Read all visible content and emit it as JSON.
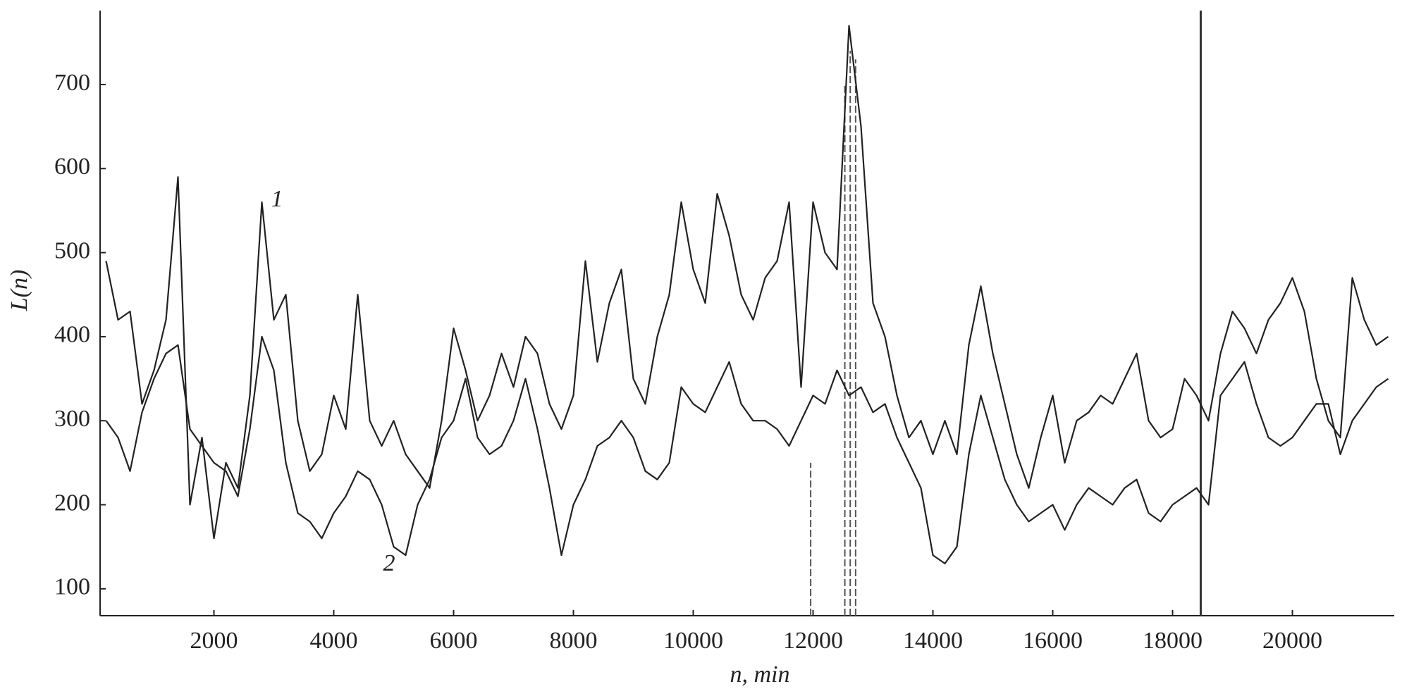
{
  "chart_data": {
    "type": "line",
    "xlabel": "n, min",
    "ylabel": "L(n)",
    "annotations": [
      "1",
      "2"
    ],
    "x": [
      200,
      400,
      600,
      800,
      1000,
      1200,
      1400,
      1600,
      1800,
      2000,
      2200,
      2400,
      2600,
      2800,
      3000,
      3200,
      3400,
      3600,
      3800,
      4000,
      4200,
      4400,
      4600,
      4800,
      5000,
      5200,
      5400,
      5600,
      5800,
      6000,
      6200,
      6400,
      6600,
      6800,
      7000,
      7200,
      7400,
      7600,
      7800,
      8000,
      8200,
      8400,
      8600,
      8800,
      9000,
      9200,
      9400,
      9600,
      9800,
      10000,
      10200,
      10400,
      10600,
      10800,
      11000,
      11200,
      11400,
      11600,
      11800,
      12000,
      12200,
      12400,
      12600,
      12800,
      13000,
      13200,
      13400,
      13600,
      13800,
      14000,
      14200,
      14400,
      14600,
      14800,
      15000,
      15200,
      15400,
      15600,
      15800,
      16000,
      16200,
      16400,
      16600,
      16800,
      17000,
      17200,
      17400,
      17600,
      17800,
      18000,
      18200,
      18400,
      18600,
      18800,
      19000,
      19200,
      19400,
      19600,
      19800,
      20000,
      20200,
      20400,
      20600,
      20800,
      21000,
      21200,
      21400,
      21600
    ],
    "series": [
      {
        "color": "#222222",
        "values": [
          490,
          420,
          430,
          320,
          360,
          420,
          590,
          200,
          280,
          160,
          250,
          220,
          330,
          560,
          420,
          450,
          300,
          240,
          260,
          330,
          290,
          450,
          300,
          270,
          300,
          260,
          240,
          220,
          300,
          410,
          360,
          300,
          330,
          380,
          340,
          400,
          380,
          320,
          290,
          330,
          490,
          370,
          440,
          480,
          350,
          320,
          400,
          450,
          560,
          480,
          440,
          570,
          520,
          450,
          420,
          470,
          490,
          560,
          340,
          560,
          500,
          480,
          770,
          650,
          440,
          400,
          330,
          280,
          300,
          260,
          300,
          260,
          390,
          460,
          380,
          320,
          260,
          220,
          280,
          330,
          250,
          300,
          310,
          330,
          320,
          350,
          380,
          300,
          280,
          290,
          350,
          330,
          300,
          380,
          430,
          410,
          380,
          420,
          440,
          470,
          430,
          350,
          300,
          280,
          470,
          420,
          390,
          400
        ]
      },
      {
        "color": "#222222",
        "values": [
          300,
          280,
          240,
          310,
          350,
          380,
          390,
          290,
          270,
          250,
          240,
          210,
          290,
          400,
          360,
          250,
          190,
          180,
          160,
          190,
          210,
          240,
          230,
          200,
          150,
          140,
          200,
          230,
          280,
          300,
          350,
          280,
          260,
          270,
          300,
          350,
          290,
          220,
          140,
          200,
          230,
          270,
          280,
          300,
          280,
          240,
          230,
          250,
          340,
          320,
          310,
          340,
          370,
          320,
          300,
          300,
          290,
          270,
          300,
          330,
          320,
          360,
          330,
          340,
          310,
          320,
          280,
          250,
          220,
          140,
          130,
          150,
          260,
          330,
          280,
          230,
          200,
          180,
          190,
          200,
          170,
          200,
          220,
          210,
          200,
          220,
          230,
          190,
          180,
          200,
          210,
          220,
          200,
          330,
          350,
          370,
          320,
          280,
          270,
          280,
          300,
          320,
          320,
          260,
          300,
          320,
          340,
          350
        ]
      }
    ],
    "vlines": [
      {
        "x": 11960,
        "top": 250,
        "style": "dashed"
      },
      {
        "x": 12530,
        "top": 700,
        "style": "dashed"
      },
      {
        "x": 12620,
        "top": 740,
        "style": "dashed"
      },
      {
        "x": 12710,
        "top": 730,
        "style": "dashed"
      },
      {
        "x": 18470,
        "top": 788,
        "style": "solid"
      }
    ],
    "xlim": [
      100,
      21700
    ],
    "ylim": [
      68,
      788
    ],
    "xticks": [
      2000,
      4000,
      6000,
      8000,
      10000,
      12000,
      14000,
      16000,
      18000,
      20000
    ],
    "yticks": [
      100,
      200,
      300,
      400,
      500,
      600,
      700
    ]
  }
}
